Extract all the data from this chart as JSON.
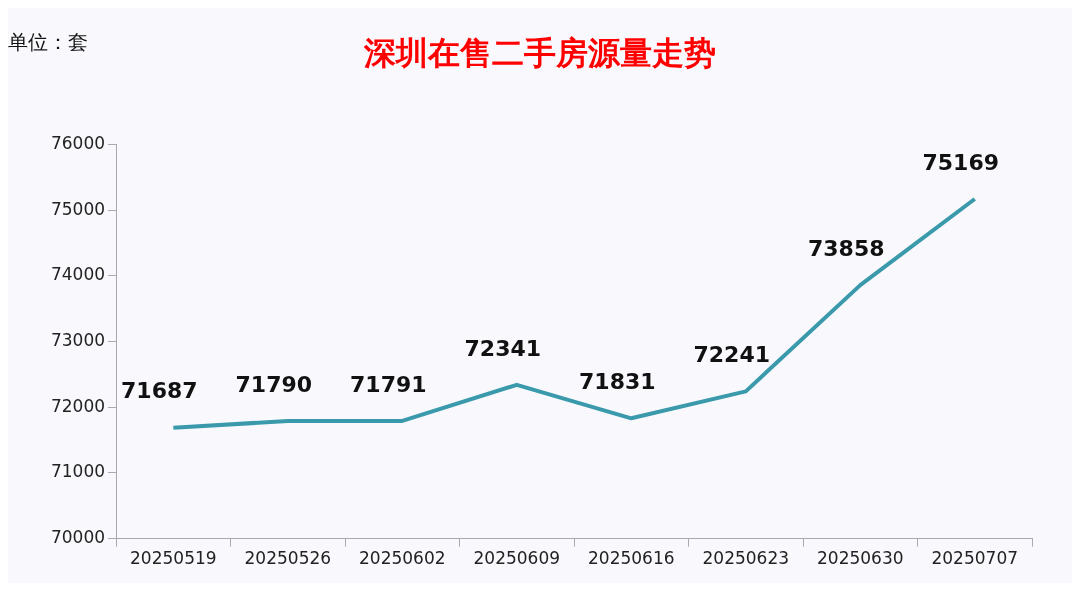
{
  "chart_data": {
    "type": "line",
    "title": "深圳在售二手房源量走势",
    "annotations": [
      "单位：套"
    ],
    "categories": [
      "20250519",
      "20250526",
      "20250602",
      "20250609",
      "20250616",
      "20250623",
      "20250630",
      "20250707"
    ],
    "series": [
      {
        "color": "#3a9aab",
        "values": [
          71687,
          71790,
          71791,
          72341,
          71831,
          72241,
          73858,
          75169
        ]
      }
    ],
    "ylim": [
      70000,
      76000
    ],
    "yticks": [
      70000,
      71000,
      72000,
      73000,
      74000,
      75000,
      76000
    ],
    "grid": false,
    "legend": false,
    "marker": "none",
    "line_style": "solid",
    "data_labels": true
  }
}
